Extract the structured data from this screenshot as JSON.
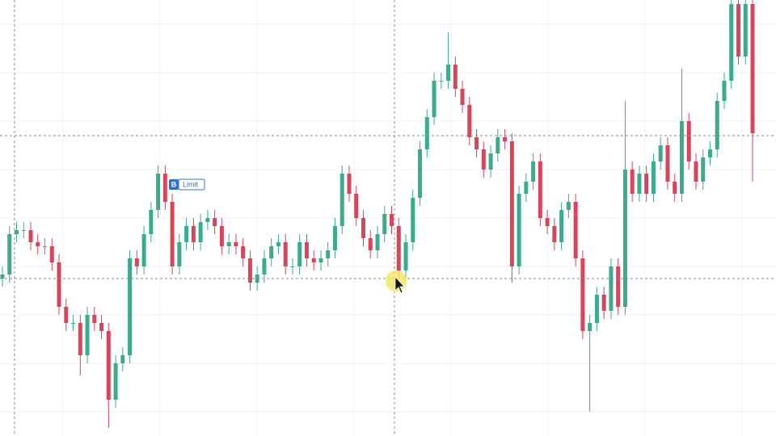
{
  "chart_data": {
    "type": "candlestick",
    "up_color": "#3aab8c",
    "down_color": "#d6455a",
    "ylim": [
      0,
      540
    ],
    "open": [
      195,
      200,
      250,
      255,
      255,
      240,
      235,
      235,
      215,
      160,
      140,
      140,
      100,
      150,
      140,
      130,
      45,
      90,
      100,
      220,
      210,
      250,
      280,
      325,
      290,
      210,
      240,
      260,
      240,
      265,
      270,
      260,
      235,
      240,
      235,
      220,
      190,
      200,
      220,
      235,
      240,
      210,
      210,
      240,
      220,
      215,
      220,
      230,
      260,
      325,
      300,
      270,
      245,
      230,
      250,
      275,
      260,
      205,
      240,
      295,
      355,
      395,
      440,
      440,
      460,
      430,
      410,
      370,
      355,
      330,
      350,
      370,
      365,
      210,
      300,
      315,
      340,
      270,
      260,
      240,
      280,
      290,
      220,
      130,
      140,
      175,
      155,
      210,
      160,
      330,
      300,
      325,
      300,
      340,
      360,
      315,
      300,
      390,
      340,
      315,
      345,
      355,
      415,
      440,
      535,
      470,
      535
    ],
    "high": [
      210,
      260,
      265,
      265,
      265,
      250,
      245,
      245,
      225,
      170,
      150,
      150,
      160,
      160,
      150,
      140,
      100,
      110,
      230,
      230,
      260,
      290,
      335,
      335,
      300,
      250,
      270,
      270,
      275,
      280,
      280,
      270,
      250,
      250,
      245,
      230,
      210,
      230,
      245,
      250,
      250,
      220,
      250,
      250,
      230,
      230,
      240,
      270,
      335,
      335,
      310,
      280,
      255,
      260,
      285,
      285,
      270,
      250,
      305,
      365,
      405,
      450,
      450,
      500,
      470,
      440,
      420,
      380,
      365,
      360,
      380,
      380,
      375,
      310,
      325,
      350,
      350,
      280,
      270,
      290,
      300,
      300,
      230,
      150,
      185,
      185,
      220,
      220,
      415,
      340,
      335,
      335,
      350,
      370,
      370,
      325,
      455,
      400,
      350,
      355,
      365,
      425,
      450,
      540,
      540,
      540,
      540
    ],
    "low": [
      185,
      190,
      240,
      245,
      230,
      225,
      225,
      205,
      150,
      130,
      130,
      75,
      90,
      130,
      120,
      10,
      35,
      80,
      90,
      200,
      200,
      240,
      270,
      280,
      200,
      200,
      230,
      230,
      230,
      255,
      250,
      225,
      225,
      225,
      210,
      180,
      180,
      190,
      210,
      225,
      200,
      200,
      200,
      210,
      205,
      205,
      210,
      220,
      250,
      290,
      260,
      235,
      220,
      220,
      240,
      250,
      195,
      195,
      230,
      285,
      345,
      385,
      430,
      430,
      420,
      400,
      360,
      345,
      320,
      320,
      340,
      355,
      190,
      200,
      290,
      305,
      260,
      250,
      230,
      230,
      270,
      210,
      120,
      30,
      130,
      145,
      145,
      150,
      150,
      290,
      290,
      290,
      290,
      330,
      305,
      290,
      290,
      330,
      305,
      305,
      335,
      345,
      405,
      430,
      460,
      460,
      315
    ],
    "close": [
      200,
      250,
      255,
      255,
      240,
      235,
      235,
      215,
      160,
      140,
      140,
      100,
      150,
      140,
      130,
      45,
      90,
      100,
      220,
      210,
      250,
      280,
      325,
      290,
      210,
      240,
      260,
      240,
      265,
      270,
      260,
      235,
      240,
      235,
      220,
      190,
      200,
      220,
      235,
      240,
      210,
      210,
      240,
      220,
      215,
      220,
      230,
      260,
      325,
      300,
      270,
      245,
      230,
      250,
      275,
      260,
      205,
      240,
      295,
      355,
      395,
      440,
      440,
      460,
      430,
      410,
      370,
      355,
      330,
      350,
      370,
      365,
      210,
      300,
      315,
      340,
      270,
      260,
      240,
      280,
      290,
      220,
      130,
      140,
      175,
      155,
      210,
      160,
      330,
      300,
      325,
      300,
      340,
      360,
      315,
      300,
      390,
      340,
      315,
      345,
      355,
      415,
      440,
      535,
      470,
      535,
      375
    ],
    "order": {
      "side": "B",
      "label": "Limit"
    }
  }
}
